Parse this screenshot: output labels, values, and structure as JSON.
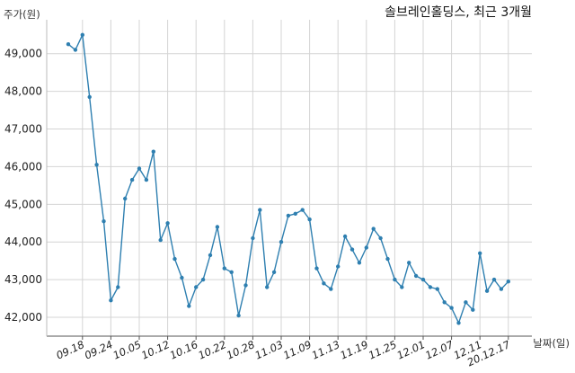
{
  "chart_data": {
    "type": "line",
    "title": "솔브레인홀딩스, 최근 3개월",
    "ylabel": "주가(원)",
    "xlabel": "날짜(일)",
    "ylim": [
      41500,
      49900
    ],
    "yticks": [
      42000,
      43000,
      44000,
      45000,
      46000,
      47000,
      48000,
      49000
    ],
    "ytick_labels": [
      "42,000",
      "43,000",
      "44,000",
      "45,000",
      "46,000",
      "47,000",
      "48,000",
      "49,000"
    ],
    "xtick_labels": [
      "09.18",
      "09.24",
      "10.05",
      "10.12",
      "10.16",
      "10.22",
      "10.28",
      "11.03",
      "11.09",
      "11.13",
      "11.19",
      "11.25",
      "12.01",
      "12.07",
      "12.11",
      "20.12.17"
    ],
    "xtick_index": [
      2,
      6,
      10,
      14,
      18,
      22,
      26,
      30,
      34,
      38,
      42,
      46,
      50,
      54,
      58,
      62
    ],
    "grid": true,
    "line_color": "#2e7fb0",
    "series": [
      {
        "values": [
          49250,
          49100,
          49500,
          47850,
          46050,
          44550,
          42450,
          42800,
          45150,
          45650,
          45950,
          45650,
          46400,
          44050,
          44500,
          43550,
          43050,
          42300,
          42800,
          43000,
          43650,
          44400,
          43300,
          43200,
          42050,
          42850,
          44100,
          44850,
          42800,
          43200,
          44000,
          44700,
          44750,
          44850,
          44600,
          43300,
          42900,
          42750,
          43350,
          44150,
          43800,
          43450,
          43850,
          44350,
          44100,
          43550,
          43000,
          42800,
          43450,
          43100,
          43000,
          42800,
          42750,
          42400,
          42250,
          41850,
          42400,
          42200,
          43700,
          42700,
          43000,
          42750,
          42950
        ]
      }
    ]
  }
}
